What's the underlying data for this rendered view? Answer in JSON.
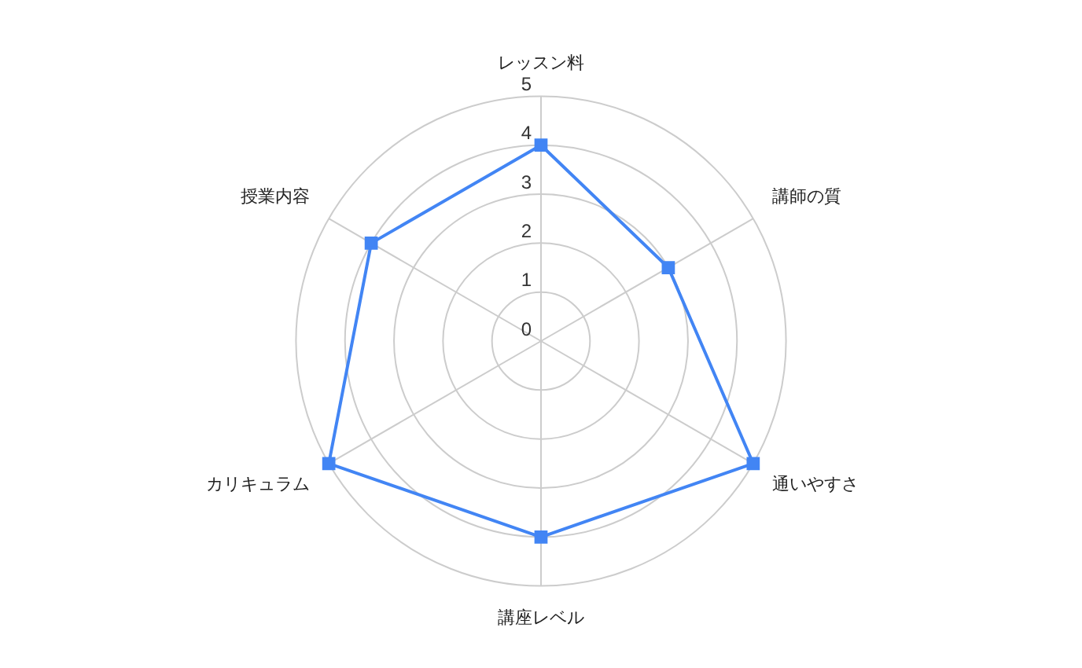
{
  "chart_data": {
    "type": "radar",
    "categories": [
      "レッスン料",
      "講師の質",
      "通いやすさ",
      "講座レベル",
      "カリキュラム",
      "授業内容"
    ],
    "series": [
      {
        "color": "#4285f4",
        "values": [
          4,
          3,
          5,
          4,
          5,
          4
        ]
      }
    ],
    "ylim": [
      0,
      5
    ],
    "yticks": [
      0,
      1,
      2,
      3,
      4,
      5
    ],
    "marker": "square",
    "grid": true,
    "line_style": "solid"
  }
}
